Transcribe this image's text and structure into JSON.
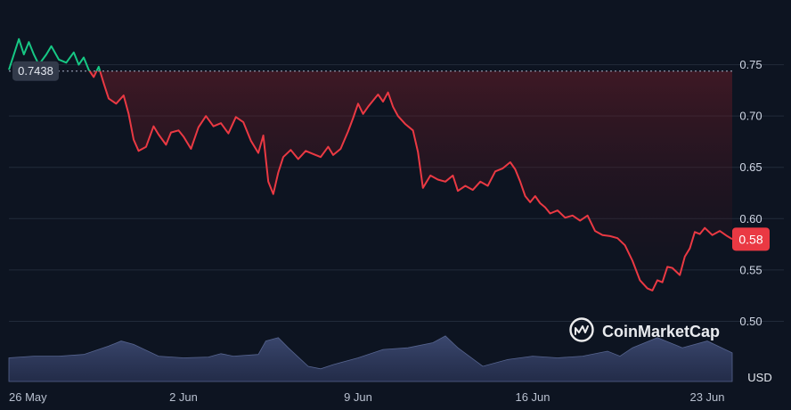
{
  "chart_data": {
    "type": "line",
    "x_ticks": [
      "26 May",
      "2 Jun",
      "9 Jun",
      "16 Jun",
      "23 Jun"
    ],
    "y_ticks": [
      0.75,
      0.7,
      0.65,
      0.6,
      0.55,
      0.5
    ],
    "ylim": [
      0.47,
      0.8
    ],
    "currency_label": "USD",
    "reference_value": 0.7438,
    "reference_label": "0.7438",
    "current_value": 0.58,
    "current_label": "0.58",
    "watermark": "CoinMarketCap",
    "grid": "horizontal",
    "price_series": {
      "name": "",
      "points": [
        [
          0,
          0.745
        ],
        [
          0.2,
          0.76
        ],
        [
          0.4,
          0.775
        ],
        [
          0.6,
          0.76
        ],
        [
          0.8,
          0.772
        ],
        [
          1.0,
          0.76
        ],
        [
          1.2,
          0.75
        ],
        [
          1.5,
          0.76
        ],
        [
          1.7,
          0.768
        ],
        [
          2.0,
          0.755
        ],
        [
          2.3,
          0.752
        ],
        [
          2.6,
          0.762
        ],
        [
          2.8,
          0.75
        ],
        [
          3.0,
          0.757
        ],
        [
          3.2,
          0.745
        ],
        [
          3.4,
          0.738
        ],
        [
          3.6,
          0.748
        ],
        [
          3.8,
          0.732
        ],
        [
          4.0,
          0.717
        ],
        [
          4.3,
          0.712
        ],
        [
          4.6,
          0.72
        ],
        [
          4.8,
          0.702
        ],
        [
          5.0,
          0.677
        ],
        [
          5.2,
          0.666
        ],
        [
          5.5,
          0.67
        ],
        [
          5.8,
          0.69
        ],
        [
          6.0,
          0.682
        ],
        [
          6.3,
          0.672
        ],
        [
          6.5,
          0.684
        ],
        [
          6.8,
          0.686
        ],
        [
          7.0,
          0.68
        ],
        [
          7.3,
          0.668
        ],
        [
          7.6,
          0.689
        ],
        [
          7.9,
          0.7
        ],
        [
          8.2,
          0.69
        ],
        [
          8.5,
          0.693
        ],
        [
          8.8,
          0.683
        ],
        [
          9.1,
          0.699
        ],
        [
          9.4,
          0.694
        ],
        [
          9.7,
          0.676
        ],
        [
          10.0,
          0.664
        ],
        [
          10.2,
          0.681
        ],
        [
          10.4,
          0.636
        ],
        [
          10.6,
          0.624
        ],
        [
          10.8,
          0.645
        ],
        [
          11.0,
          0.66
        ],
        [
          11.3,
          0.667
        ],
        [
          11.6,
          0.658
        ],
        [
          11.9,
          0.666
        ],
        [
          12.2,
          0.663
        ],
        [
          12.5,
          0.66
        ],
        [
          12.8,
          0.67
        ],
        [
          13.0,
          0.662
        ],
        [
          13.3,
          0.668
        ],
        [
          13.6,
          0.685
        ],
        [
          13.8,
          0.698
        ],
        [
          14.0,
          0.712
        ],
        [
          14.2,
          0.702
        ],
        [
          14.4,
          0.709
        ],
        [
          14.6,
          0.715
        ],
        [
          14.8,
          0.721
        ],
        [
          15.0,
          0.714
        ],
        [
          15.2,
          0.723
        ],
        [
          15.4,
          0.709
        ],
        [
          15.6,
          0.7
        ],
        [
          15.9,
          0.692
        ],
        [
          16.2,
          0.686
        ],
        [
          16.4,
          0.665
        ],
        [
          16.6,
          0.63
        ],
        [
          16.9,
          0.642
        ],
        [
          17.2,
          0.638
        ],
        [
          17.5,
          0.636
        ],
        [
          17.8,
          0.642
        ],
        [
          18.0,
          0.627
        ],
        [
          18.3,
          0.632
        ],
        [
          18.6,
          0.628
        ],
        [
          18.9,
          0.636
        ],
        [
          19.2,
          0.632
        ],
        [
          19.5,
          0.646
        ],
        [
          19.8,
          0.649
        ],
        [
          20.1,
          0.655
        ],
        [
          20.3,
          0.648
        ],
        [
          20.5,
          0.636
        ],
        [
          20.7,
          0.622
        ],
        [
          20.9,
          0.616
        ],
        [
          21.1,
          0.622
        ],
        [
          21.3,
          0.615
        ],
        [
          21.5,
          0.611
        ],
        [
          21.7,
          0.605
        ],
        [
          22.0,
          0.608
        ],
        [
          22.3,
          0.601
        ],
        [
          22.6,
          0.603
        ],
        [
          22.9,
          0.598
        ],
        [
          23.2,
          0.603
        ],
        [
          23.5,
          0.588
        ],
        [
          23.8,
          0.584
        ],
        [
          24.1,
          0.583
        ],
        [
          24.4,
          0.581
        ],
        [
          24.7,
          0.574
        ],
        [
          25.0,
          0.559
        ],
        [
          25.3,
          0.54
        ],
        [
          25.6,
          0.532
        ],
        [
          25.8,
          0.53
        ],
        [
          26.0,
          0.54
        ],
        [
          26.2,
          0.538
        ],
        [
          26.4,
          0.553
        ],
        [
          26.6,
          0.552
        ],
        [
          26.9,
          0.545
        ],
        [
          27.1,
          0.563
        ],
        [
          27.3,
          0.571
        ],
        [
          27.5,
          0.587
        ],
        [
          27.7,
          0.585
        ],
        [
          27.9,
          0.591
        ],
        [
          28.2,
          0.584
        ],
        [
          28.5,
          0.588
        ],
        [
          28.8,
          0.583
        ],
        [
          29.0,
          0.58
        ]
      ]
    },
    "volume_series": {
      "name": "",
      "points": [
        [
          0,
          0.28
        ],
        [
          1,
          0.3
        ],
        [
          2,
          0.3
        ],
        [
          3,
          0.32
        ],
        [
          4,
          0.42
        ],
        [
          4.5,
          0.48
        ],
        [
          5,
          0.44
        ],
        [
          6,
          0.3
        ],
        [
          7,
          0.28
        ],
        [
          8,
          0.29
        ],
        [
          8.5,
          0.33
        ],
        [
          9,
          0.3
        ],
        [
          10,
          0.32
        ],
        [
          10.3,
          0.48
        ],
        [
          10.8,
          0.52
        ],
        [
          11.2,
          0.4
        ],
        [
          12,
          0.18
        ],
        [
          12.5,
          0.15
        ],
        [
          13,
          0.2
        ],
        [
          14,
          0.28
        ],
        [
          15,
          0.38
        ],
        [
          16,
          0.4
        ],
        [
          17,
          0.46
        ],
        [
          17.5,
          0.54
        ],
        [
          18,
          0.4
        ],
        [
          19,
          0.18
        ],
        [
          20,
          0.26
        ],
        [
          21,
          0.3
        ],
        [
          22,
          0.28
        ],
        [
          23,
          0.3
        ],
        [
          24,
          0.36
        ],
        [
          24.5,
          0.3
        ],
        [
          25,
          0.4
        ],
        [
          26,
          0.52
        ],
        [
          27,
          0.4
        ],
        [
          28,
          0.48
        ],
        [
          29,
          0.34
        ]
      ]
    }
  }
}
